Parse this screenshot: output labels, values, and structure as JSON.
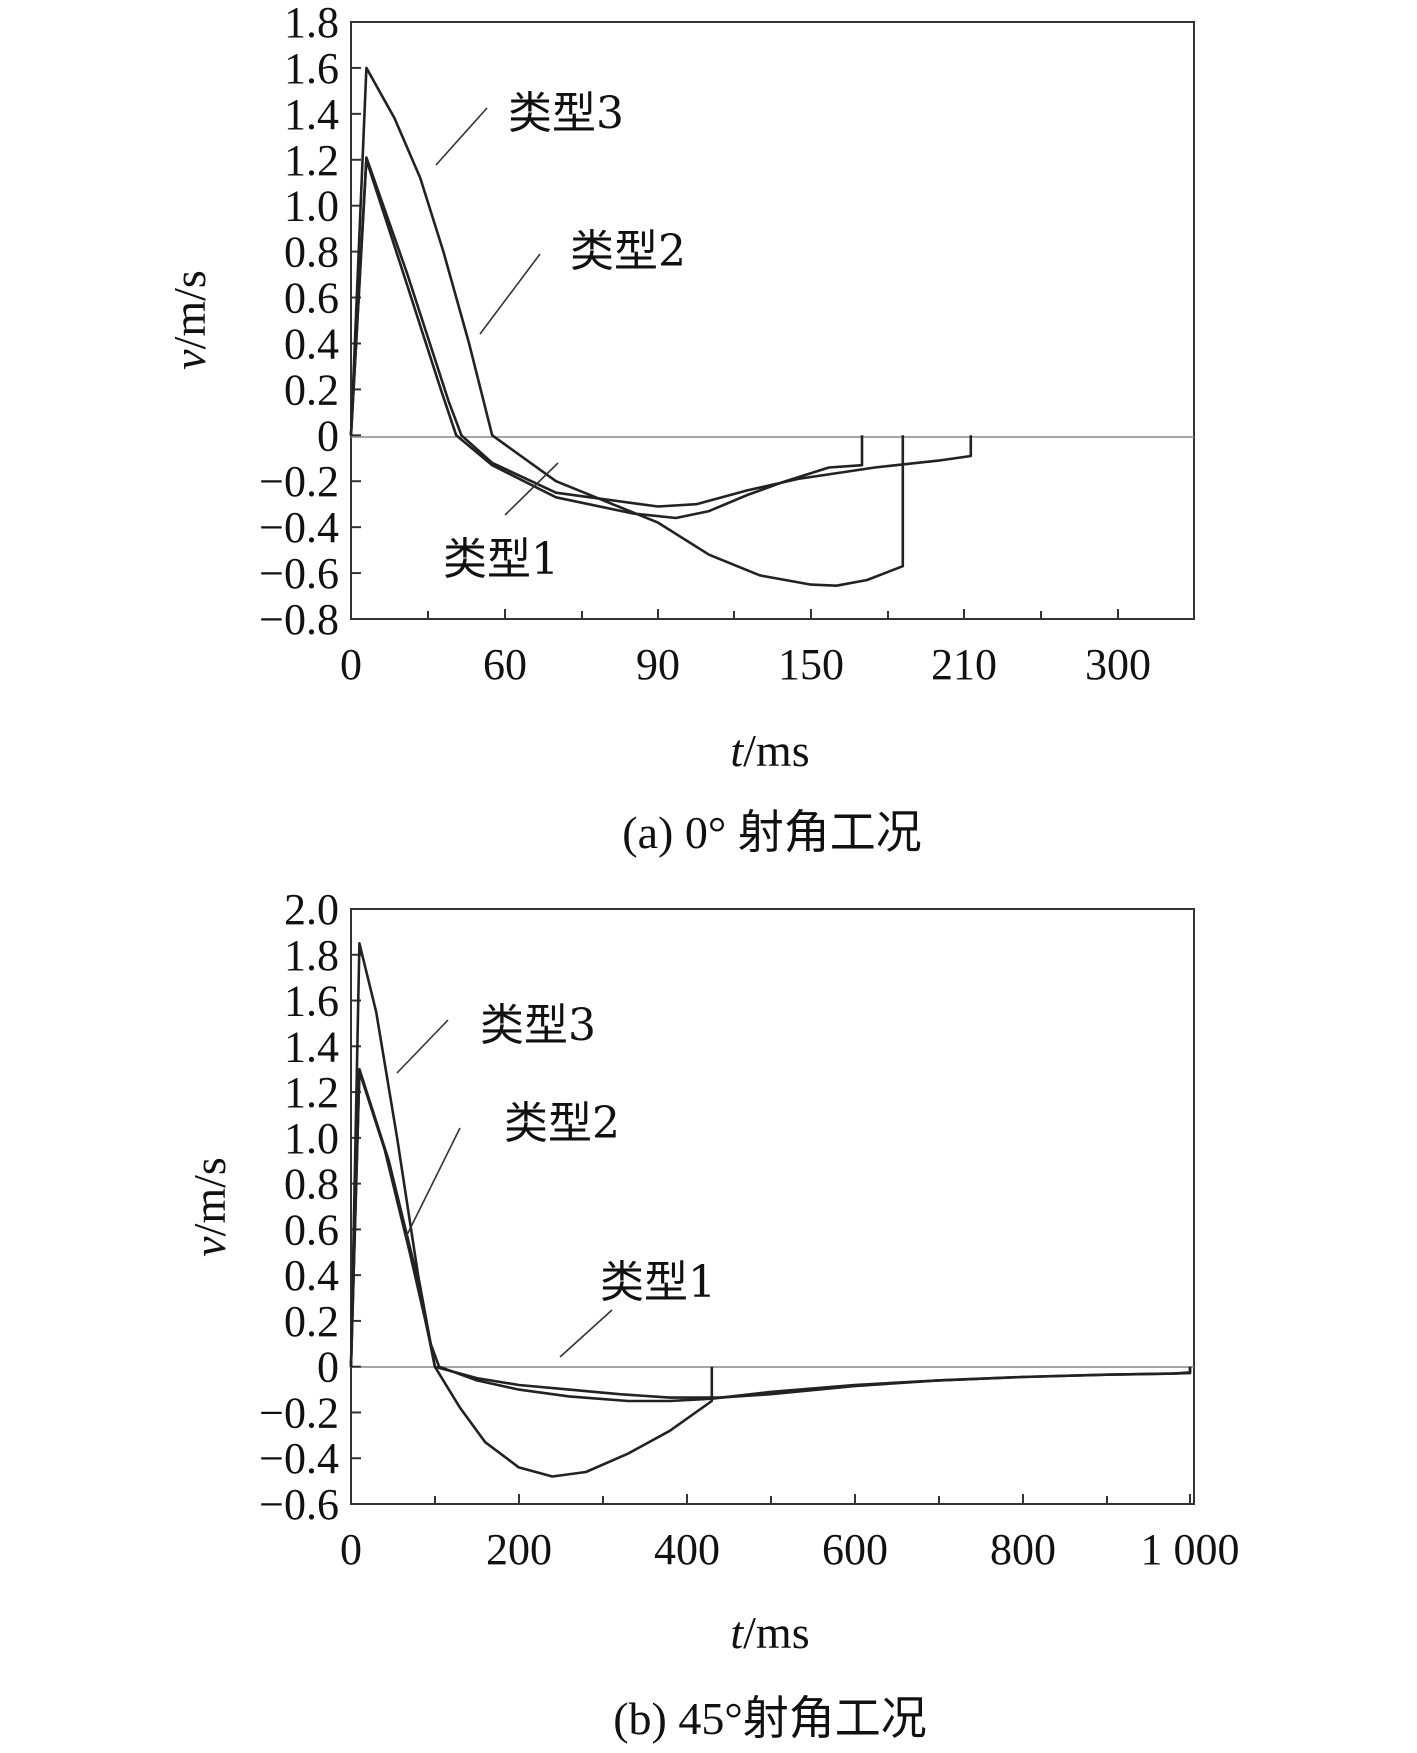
{
  "chart_data": [
    {
      "type": "line",
      "caption": "(a) 0° 射角工况",
      "xlabel_italic": "t",
      "xlabel_unit": "/ms",
      "ylabel_italic": "v",
      "ylabel_unit": "/m/s",
      "yticks": [
        "1.8",
        "1.6",
        "1.4",
        "1.2",
        "1.0",
        "0.8",
        "0.6",
        "0.4",
        "0.2",
        "0",
        "−0.2",
        "−0.4",
        "−0.6",
        "−0.8"
      ],
      "xtick_labels": [
        "0",
        "60",
        "90",
        "150",
        "210",
        "300"
      ],
      "ylim": [
        -0.8,
        1.8
      ],
      "series": [
        {
          "name": "类型3",
          "points": [
            [
              0,
              0
            ],
            [
              6,
              1.6
            ],
            [
              17,
              1.38
            ],
            [
              27,
              1.12
            ],
            [
              36,
              0.8
            ],
            [
              46,
              0.4
            ],
            [
              55,
              0
            ],
            [
              70,
              -0.2
            ],
            [
              90,
              -0.38
            ],
            [
              110,
              -0.52
            ],
            [
              130,
              -0.61
            ],
            [
              150,
              -0.65
            ],
            [
              160,
              -0.655
            ],
            [
              172,
              -0.63
            ],
            [
              186,
              -0.57
            ],
            [
              186,
              0
            ]
          ]
        },
        {
          "name": "类型2",
          "points": [
            [
              0,
              0
            ],
            [
              6,
              1.21
            ],
            [
              22,
              0.7
            ],
            [
              38,
              0.15
            ],
            [
              43,
              0
            ],
            [
              55,
              -0.12
            ],
            [
              70,
              -0.25
            ],
            [
              90,
              -0.31
            ],
            [
              105,
              -0.3
            ],
            [
              125,
              -0.24
            ],
            [
              145,
              -0.19
            ],
            [
              175,
              -0.14
            ],
            [
              200,
              -0.11
            ],
            [
              214,
              -0.09
            ],
            [
              214,
              0
            ]
          ]
        },
        {
          "name": "类型1",
          "points": [
            [
              0,
              0
            ],
            [
              6,
              1.2
            ],
            [
              22,
              0.65
            ],
            [
              35,
              0.2
            ],
            [
              41,
              0
            ],
            [
              55,
              -0.13
            ],
            [
              70,
              -0.27
            ],
            [
              85,
              -0.34
            ],
            [
              97,
              -0.36
            ],
            [
              110,
              -0.33
            ],
            [
              125,
              -0.26
            ],
            [
              140,
              -0.2
            ],
            [
              157,
              -0.14
            ],
            [
              170,
              -0.13
            ],
            [
              170,
              0
            ]
          ]
        }
      ]
    },
    {
      "type": "line",
      "caption": "(b) 45°射角工况",
      "xlabel_italic": "t",
      "xlabel_unit": "/ms",
      "ylabel_italic": "v",
      "ylabel_unit": "/m/s",
      "yticks": [
        "2.0",
        "1.8",
        "1.6",
        "1.4",
        "1.2",
        "1.0",
        "0.8",
        "0.6",
        "0.4",
        "0.2",
        "0",
        "−0.2",
        "−0.4",
        "−0.6"
      ],
      "xtick_labels": [
        "0",
        "200",
        "400",
        "600",
        "800",
        "1 000"
      ],
      "xlim": [
        0,
        1000
      ],
      "ylim": [
        -0.6,
        2.0
      ],
      "series": [
        {
          "name": "类型3",
          "points": [
            [
              0,
              0
            ],
            [
              10,
              1.85
            ],
            [
              30,
              1.55
            ],
            [
              55,
              1.0
            ],
            [
              80,
              0.4
            ],
            [
              100,
              0
            ],
            [
              130,
              -0.18
            ],
            [
              160,
              -0.33
            ],
            [
              200,
              -0.44
            ],
            [
              240,
              -0.48
            ],
            [
              280,
              -0.46
            ],
            [
              330,
              -0.38
            ],
            [
              380,
              -0.28
            ],
            [
              430,
              -0.15
            ],
            [
              430,
              0
            ]
          ]
        },
        {
          "name": "类型2",
          "points": [
            [
              0,
              0
            ],
            [
              10,
              1.29
            ],
            [
              40,
              0.95
            ],
            [
              70,
              0.5
            ],
            [
              95,
              0.1
            ],
            [
              105,
              0
            ],
            [
              150,
              -0.06
            ],
            [
              200,
              -0.1
            ],
            [
              260,
              -0.13
            ],
            [
              330,
              -0.15
            ],
            [
              380,
              -0.15
            ],
            [
              430,
              -0.14
            ],
            [
              500,
              -0.11
            ],
            [
              600,
              -0.08
            ],
            [
              700,
              -0.06
            ],
            [
              800,
              -0.045
            ],
            [
              900,
              -0.035
            ],
            [
              980,
              -0.03
            ],
            [
              1000,
              -0.025
            ],
            [
              1000,
              0
            ]
          ]
        },
        {
          "name": "类型1",
          "points": [
            [
              0,
              0
            ],
            [
              10,
              1.3
            ],
            [
              45,
              0.9
            ],
            [
              75,
              0.45
            ],
            [
              100,
              0
            ],
            [
              150,
              -0.05
            ],
            [
              200,
              -0.08
            ],
            [
              260,
              -0.1
            ],
            [
              320,
              -0.12
            ],
            [
              380,
              -0.135
            ],
            [
              440,
              -0.135
            ],
            [
              500,
              -0.12
            ],
            [
              600,
              -0.085
            ],
            [
              700,
              -0.06
            ],
            [
              800,
              -0.045
            ],
            [
              900,
              -0.035
            ],
            [
              980,
              -0.03
            ],
            [
              1000,
              -0.028
            ],
            [
              1000,
              0
            ]
          ]
        }
      ]
    }
  ]
}
